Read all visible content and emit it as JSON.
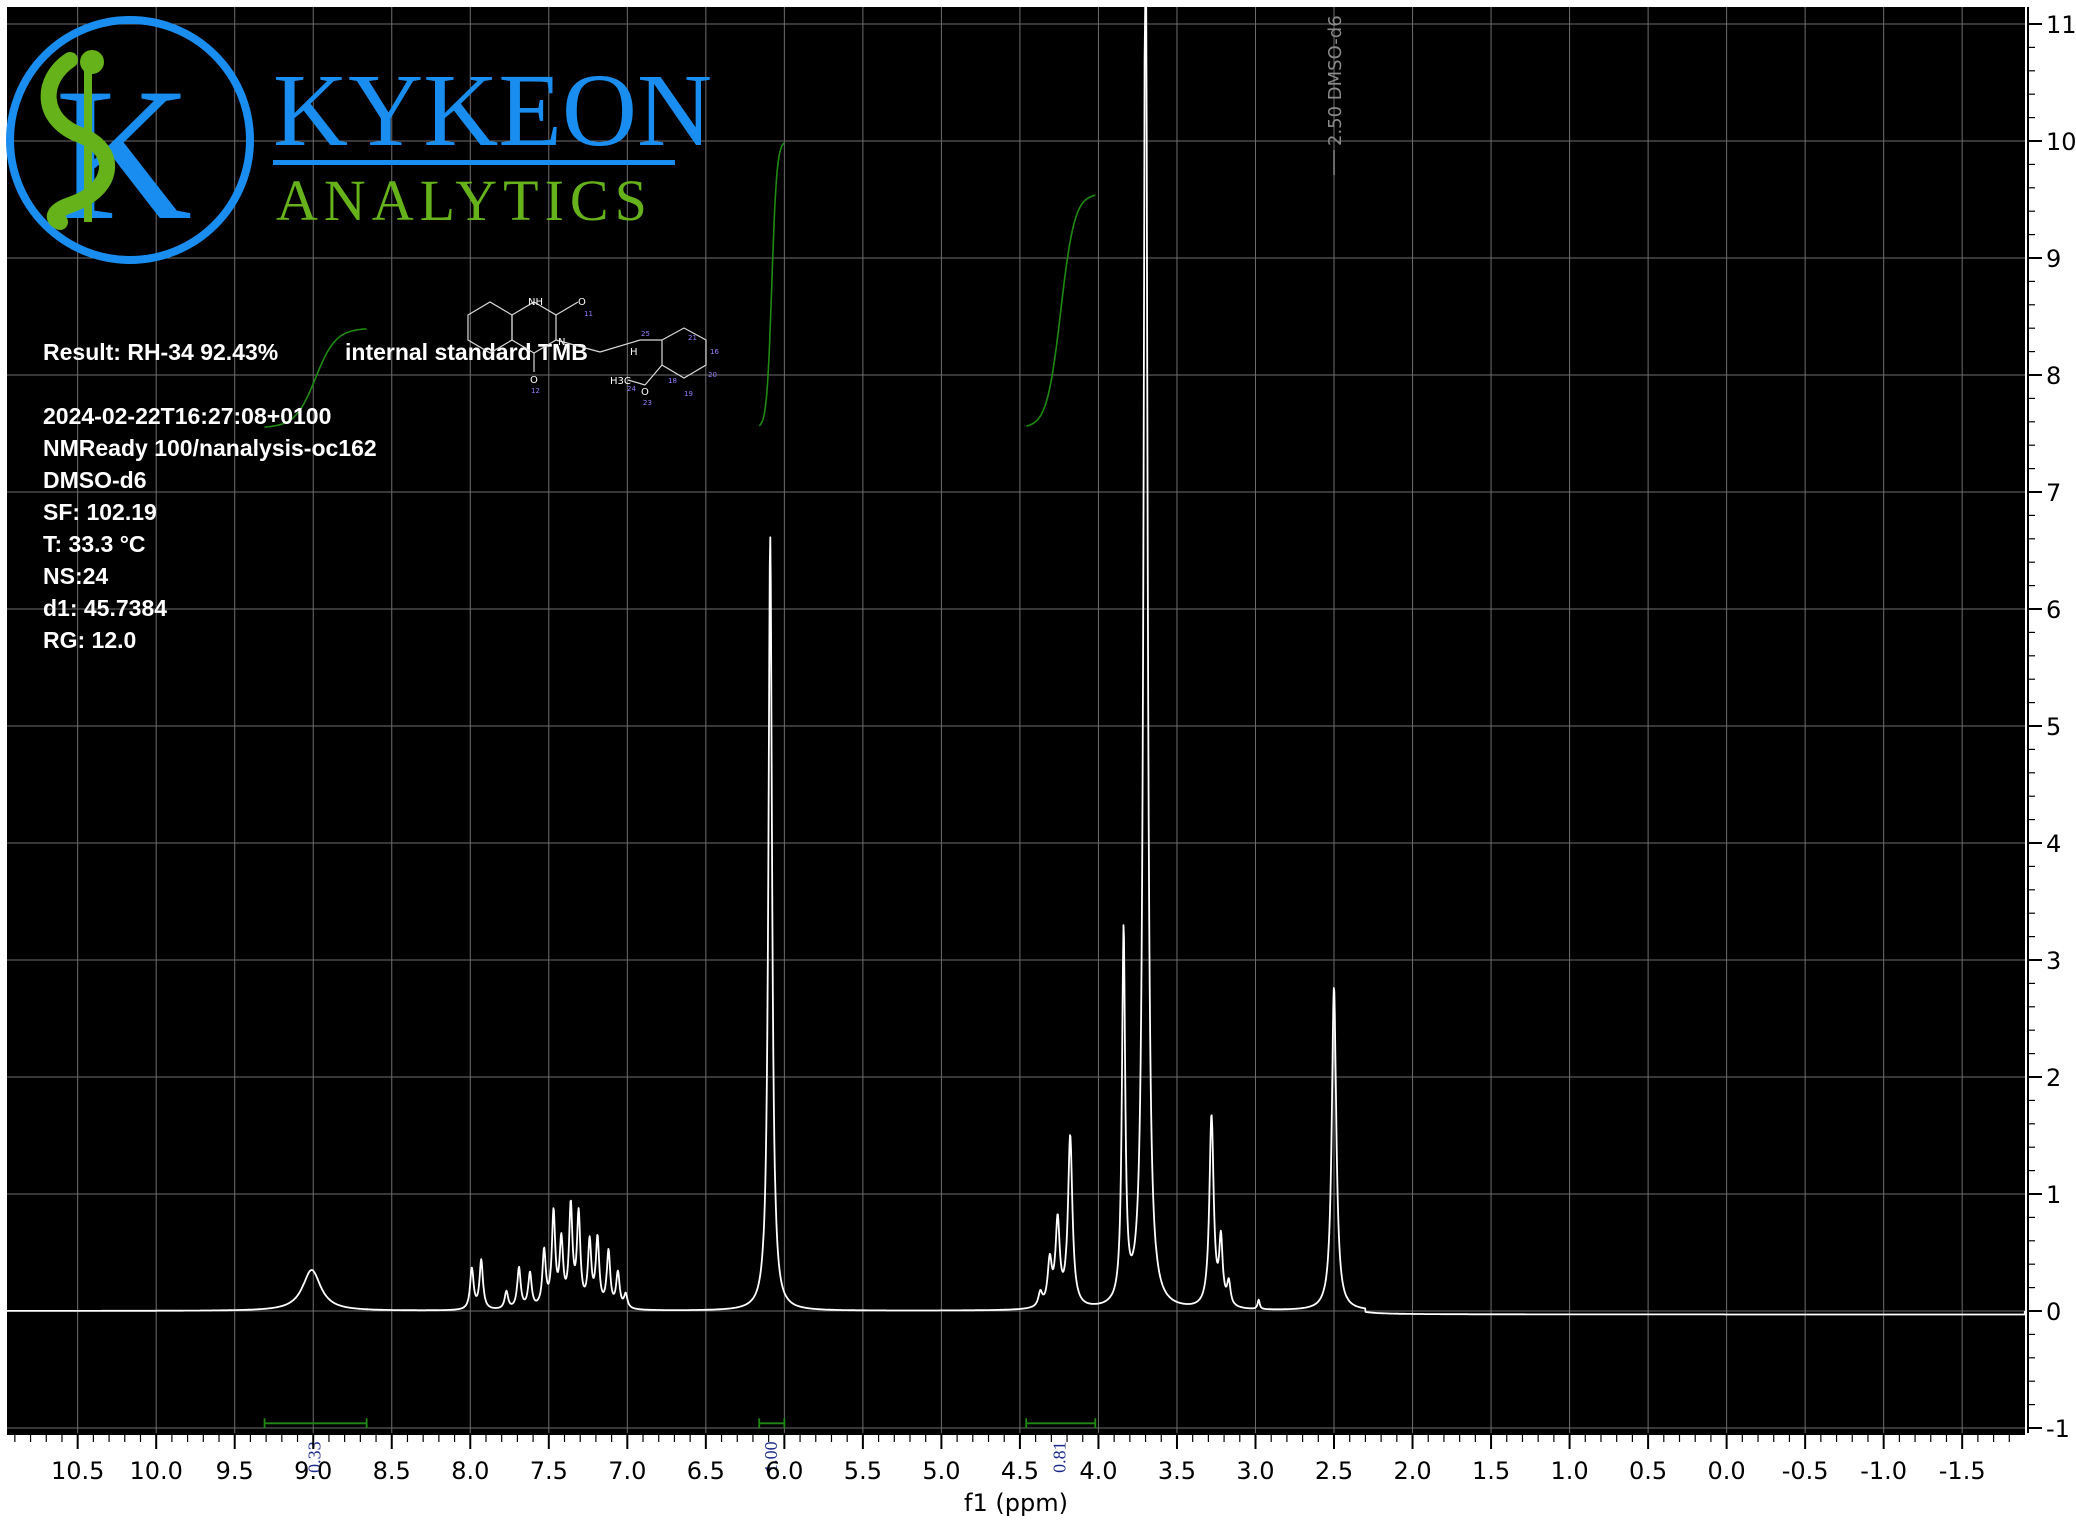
{
  "logo": {
    "brand_top": "KYKEON",
    "brand_bottom": "ANALYTICS",
    "colors": {
      "blue": "#1a8ef0",
      "green": "#66b21b"
    }
  },
  "info": {
    "result_label": "Result: RH-34 92.43%",
    "standard_label": "internal standard TMB",
    "timestamp": "2024-02-22T16:27:08+0100",
    "instrument": "NMReady 100/nanalysis-oc162",
    "solvent": "DMSO-d6",
    "sf": "SF: 102.19",
    "temperature": "T: 33.3 °C",
    "ns": "NS:24",
    "d1": "d1: 45.7384",
    "rg": "RG: 12.0"
  },
  "molecule": {
    "atoms": [
      "NH",
      "O",
      "N",
      "O",
      "H",
      "H3C",
      "O"
    ],
    "atom_numbers": [
      "11",
      "12",
      "23",
      "24",
      "25",
      "18",
      "19",
      "20",
      "21",
      "16"
    ]
  },
  "colors": {
    "background": "#000000",
    "grid": "#6e6e6e",
    "spectrum": "#ffffff",
    "integral_curve": "#1f8a12",
    "integral_bar": "#1f8a12",
    "integral_label": "#1a2a8a",
    "frame": "#000000"
  },
  "chart_data": {
    "type": "line",
    "xlabel": "f1 (ppm)",
    "ylabel": "",
    "xlim": [
      10.95,
      -1.9
    ],
    "ylim": [
      -1,
      11
    ],
    "x_reversed": true,
    "grid": true,
    "x_ticks": [
      10.5,
      10.0,
      9.5,
      9.0,
      8.5,
      8.0,
      7.5,
      7.0,
      6.5,
      6.0,
      5.5,
      5.0,
      4.5,
      4.0,
      3.5,
      3.0,
      2.5,
      2.0,
      1.5,
      1.0,
      0.5,
      0.0,
      -0.5,
      -1.0,
      -1.5
    ],
    "x_tick_labels": [
      "10.5",
      "10.0",
      "9.5",
      "9.0",
      "8.5",
      "8.0",
      "7.5",
      "7.0",
      "6.5",
      "6.0",
      "5.5",
      "5.0",
      "4.5",
      "4.0",
      "3.5",
      "3.0",
      "2.5",
      "2.0",
      "1.5",
      "1.0",
      "0.5",
      "0.0",
      "-0.5",
      "-1.0",
      "-1.5"
    ],
    "y_ticks": [
      11,
      10,
      9,
      8,
      7,
      6,
      5,
      4,
      3,
      2,
      1,
      0,
      -1
    ],
    "y_tick_labels": [
      "11",
      "10",
      "9",
      "8",
      "7",
      "6",
      "5",
      "4",
      "3",
      "2",
      "1",
      "0",
      "-1"
    ],
    "peaks": [
      {
        "ppm": 9.01,
        "height": 0.35,
        "width": 0.07
      },
      {
        "ppm": 7.99,
        "height": 0.35,
        "width": 0.013
      },
      {
        "ppm": 7.93,
        "height": 0.42,
        "width": 0.013
      },
      {
        "ppm": 7.77,
        "height": 0.15,
        "width": 0.013
      },
      {
        "ppm": 7.69,
        "height": 0.35,
        "width": 0.013
      },
      {
        "ppm": 7.62,
        "height": 0.3,
        "width": 0.013
      },
      {
        "ppm": 7.53,
        "height": 0.48,
        "width": 0.013
      },
      {
        "ppm": 7.47,
        "height": 0.8,
        "width": 0.013
      },
      {
        "ppm": 7.42,
        "height": 0.55,
        "width": 0.013
      },
      {
        "ppm": 7.36,
        "height": 0.85,
        "width": 0.013
      },
      {
        "ppm": 7.31,
        "height": 0.78,
        "width": 0.013
      },
      {
        "ppm": 7.24,
        "height": 0.55,
        "width": 0.013
      },
      {
        "ppm": 7.19,
        "height": 0.58,
        "width": 0.013
      },
      {
        "ppm": 7.12,
        "height": 0.48,
        "width": 0.013
      },
      {
        "ppm": 7.06,
        "height": 0.3,
        "width": 0.013
      },
      {
        "ppm": 7.01,
        "height": 0.12,
        "width": 0.013
      },
      {
        "ppm": 6.09,
        "height": 6.62,
        "width": 0.014
      },
      {
        "ppm": 4.37,
        "height": 0.12,
        "width": 0.015
      },
      {
        "ppm": 4.31,
        "height": 0.38,
        "width": 0.016
      },
      {
        "ppm": 4.26,
        "height": 0.72,
        "width": 0.016
      },
      {
        "ppm": 4.18,
        "height": 1.46,
        "width": 0.017
      },
      {
        "ppm": 3.84,
        "height": 3.18,
        "width": 0.012
      },
      {
        "ppm": 3.7,
        "height": 12.5,
        "width": 0.014
      },
      {
        "ppm": 3.28,
        "height": 1.64,
        "width": 0.016
      },
      {
        "ppm": 3.22,
        "height": 0.55,
        "width": 0.013
      },
      {
        "ppm": 3.17,
        "height": 0.2,
        "width": 0.013
      },
      {
        "ppm": 2.98,
        "height": 0.08,
        "width": 0.008
      },
      {
        "ppm": 2.5,
        "height": 2.77,
        "width": 0.017
      }
    ],
    "integrals": [
      {
        "from": 9.31,
        "to": 8.66,
        "value": "0.33",
        "curve_start_y": 7.55,
        "curve_end_y": 8.4
      },
      {
        "from": 6.16,
        "to": 6.0,
        "value": "1.00",
        "curve_start_y": 7.55,
        "curve_end_y": 10.0
      },
      {
        "from": 4.46,
        "to": 4.02,
        "value": "0.81",
        "curve_start_y": 7.55,
        "curve_end_y": 9.55
      }
    ],
    "peak_labels": [
      {
        "ppm": 2.5,
        "text": "2.50 DMSO-d6"
      }
    ]
  }
}
